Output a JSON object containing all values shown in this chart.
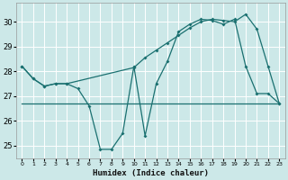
{
  "xlabel": "Humidex (Indice chaleur)",
  "bg_color": "#cce8e8",
  "grid_color": "#ffffff",
  "line_color": "#1a7070",
  "xlim": [
    -0.5,
    23.5
  ],
  "ylim": [
    24.5,
    30.75
  ],
  "yticks": [
    25,
    26,
    27,
    28,
    29,
    30
  ],
  "xticks": [
    0,
    1,
    2,
    3,
    4,
    5,
    6,
    7,
    8,
    9,
    10,
    11,
    12,
    13,
    14,
    15,
    16,
    17,
    18,
    19,
    20,
    21,
    22,
    23
  ],
  "line1_x": [
    0,
    1,
    2,
    3,
    4,
    5,
    6,
    7,
    8,
    9,
    10,
    11,
    12,
    13,
    14,
    15,
    16,
    17,
    18,
    19,
    20,
    21,
    22,
    23
  ],
  "line1_y": [
    28.2,
    27.7,
    27.4,
    27.5,
    27.5,
    27.3,
    26.6,
    24.85,
    24.85,
    25.5,
    28.2,
    25.4,
    27.5,
    28.4,
    29.6,
    29.9,
    30.1,
    30.05,
    29.9,
    30.1,
    28.2,
    27.1,
    27.1,
    26.7
  ],
  "line2_x": [
    0,
    1,
    2,
    3,
    4,
    10,
    11,
    12,
    13,
    14,
    15,
    16,
    17,
    18,
    19,
    20,
    21,
    22,
    23
  ],
  "line2_y": [
    28.2,
    27.7,
    27.4,
    27.5,
    27.5,
    28.15,
    28.55,
    28.85,
    29.15,
    29.45,
    29.75,
    30.0,
    30.1,
    30.05,
    30.0,
    30.3,
    29.7,
    28.2,
    26.7
  ],
  "line3_x": [
    0,
    4,
    5,
    6,
    7,
    8,
    9,
    23
  ],
  "line3_y": [
    26.7,
    26.7,
    26.7,
    26.7,
    26.7,
    26.7,
    26.7,
    26.7
  ],
  "marker_size": 2.0,
  "line_width": 0.9
}
